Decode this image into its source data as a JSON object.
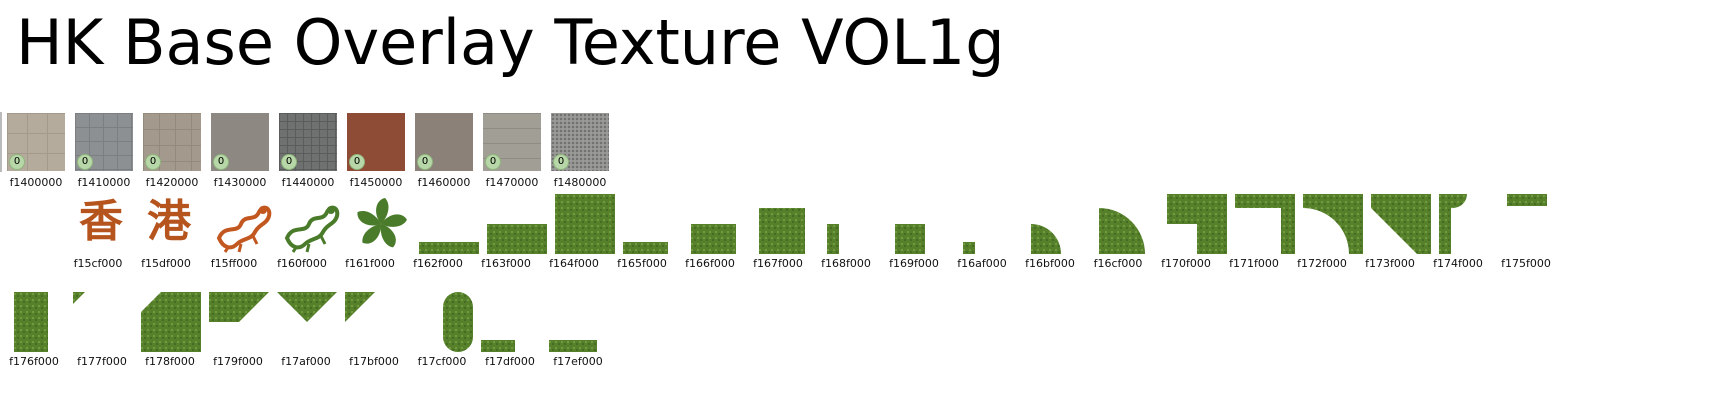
{
  "title": "HK Base Overlay Texture VOL1g",
  "badge_text": "0",
  "row1": [
    {
      "label": "f1400000",
      "texture": "ground1"
    },
    {
      "label": "f1410000",
      "texture": "ground2"
    },
    {
      "label": "f1420000",
      "texture": "ground3"
    },
    {
      "label": "f1430000",
      "texture": "ground4"
    },
    {
      "label": "f1440000",
      "texture": "ground5"
    },
    {
      "label": "f1450000",
      "texture": "ground6"
    },
    {
      "label": "f1460000",
      "texture": "ground7"
    },
    {
      "label": "f1470000",
      "texture": "ground8"
    },
    {
      "label": "f1480000",
      "texture": "ground9"
    }
  ],
  "row2": [
    {
      "label": "f15cf000",
      "kind": "char",
      "char": "香"
    },
    {
      "label": "f15df000",
      "kind": "char",
      "char": "港"
    },
    {
      "label": "f15ff000",
      "kind": "dragon-orange"
    },
    {
      "label": "f160f000",
      "kind": "dragon-green"
    },
    {
      "label": "f161f000",
      "kind": "bauhinia"
    },
    {
      "label": "f162f000",
      "kind": "shape",
      "shape": "strip"
    },
    {
      "label": "f163f000",
      "kind": "shape",
      "shape": "half"
    },
    {
      "label": "f164f000",
      "kind": "shape",
      "shape": "square"
    },
    {
      "label": "f165f000",
      "kind": "shape",
      "shape": "strip-small"
    },
    {
      "label": "f166f000",
      "kind": "shape",
      "shape": "half-small"
    },
    {
      "label": "f167f000",
      "kind": "shape",
      "shape": "square-small"
    },
    {
      "label": "f168f000",
      "kind": "shape",
      "shape": "thin-bar"
    },
    {
      "label": "f169f000",
      "kind": "shape",
      "shape": "tiny-square"
    },
    {
      "label": "f16af000",
      "kind": "shape",
      "shape": "dot"
    },
    {
      "label": "f16bf000",
      "kind": "shape",
      "shape": "quarter-small"
    },
    {
      "label": "f16cf000",
      "kind": "shape",
      "shape": "quarter"
    },
    {
      "label": "f170f000",
      "kind": "shape",
      "shape": "notch"
    },
    {
      "label": "f171f000",
      "kind": "shape",
      "shape": "corner"
    },
    {
      "label": "f172f000",
      "kind": "shape",
      "shape": "arc-corner"
    },
    {
      "label": "f173f000",
      "kind": "shape",
      "shape": "bevel-corner"
    },
    {
      "label": "f174f000",
      "kind": "shape",
      "shape": "cut-circle"
    },
    {
      "label": "f175f000",
      "kind": "shape",
      "shape": "top-strip"
    }
  ],
  "row3": [
    {
      "label": "f176f000",
      "shape": "tall-rect"
    },
    {
      "label": "f177f000",
      "shape": "tiny-tri"
    },
    {
      "label": "f178f000",
      "shape": "bevel-square"
    },
    {
      "label": "f179f000",
      "shape": "tri-right"
    },
    {
      "label": "f17af000",
      "shape": "tri-down"
    },
    {
      "label": "f17bf000",
      "shape": "tri-left"
    },
    {
      "label": "f17cf000",
      "shape": "capsule"
    },
    {
      "label": "f17df000",
      "shape": "small-bar"
    },
    {
      "label": "f17ef000",
      "shape": "wide-bar"
    }
  ]
}
